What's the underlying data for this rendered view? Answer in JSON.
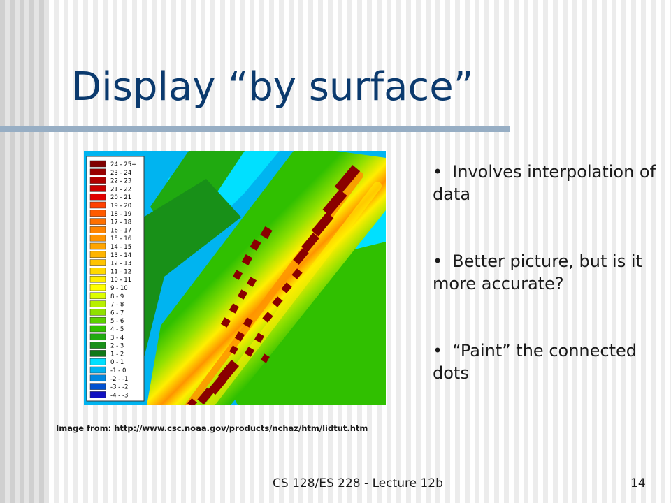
{
  "slide": {
    "title": "Display “by surface”",
    "bullets": [
      {
        "text": "Involves interpolation of data"
      },
      {
        "text": "Better picture, but is it more accurate?"
      },
      {
        "text": "“Paint” the connected dots"
      }
    ],
    "bullet_symbol": "•",
    "caption": "Image from: http://www.csc.noaa.gov/products/nchaz/htm/lidtut.htm",
    "footer": "CS 128/ES 228 - Lecture 12b",
    "page_number": "14"
  },
  "legend": {
    "entries": [
      {
        "label": "24 - 25+",
        "color": "#800000"
      },
      {
        "label": "23 - 24",
        "color": "#990000"
      },
      {
        "label": "22 - 23",
        "color": "#b00000"
      },
      {
        "label": "21 - 22",
        "color": "#cc0000"
      },
      {
        "label": "20 - 21",
        "color": "#e00000"
      },
      {
        "label": "19 - 20",
        "color": "#ff4000"
      },
      {
        "label": "18 - 19",
        "color": "#ff5a00"
      },
      {
        "label": "17 - 18",
        "color": "#ff7000"
      },
      {
        "label": "16 - 17",
        "color": "#ff8400"
      },
      {
        "label": "15 - 16",
        "color": "#ff9400"
      },
      {
        "label": "14 - 15",
        "color": "#ffa400"
      },
      {
        "label": "13 - 14",
        "color": "#ffb400"
      },
      {
        "label": "12 - 13",
        "color": "#ffc400"
      },
      {
        "label": "11 - 12",
        "color": "#ffd800"
      },
      {
        "label": "10 - 11",
        "color": "#ffee00"
      },
      {
        "label": "9 - 10",
        "color": "#ffff00"
      },
      {
        "label": "8 - 9",
        "color": "#ddff00"
      },
      {
        "label": "7 - 8",
        "color": "#b8f000"
      },
      {
        "label": "6 - 7",
        "color": "#90e000"
      },
      {
        "label": "5 - 6",
        "color": "#5cd000"
      },
      {
        "label": "4 - 5",
        "color": "#30c000"
      },
      {
        "label": "3 - 4",
        "color": "#20aa10"
      },
      {
        "label": "2 - 3",
        "color": "#189018"
      },
      {
        "label": "1 - 2",
        "color": "#107818"
      },
      {
        "label": "0 - 1",
        "color": "#00e0ff"
      },
      {
        "label": "-1 - 0",
        "color": "#00b4f0"
      },
      {
        "label": "-2 - -1",
        "color": "#0088e0"
      },
      {
        "label": "-3 - -2",
        "color": "#0050d0"
      },
      {
        "label": "-4 - -3",
        "color": "#1010c0"
      }
    ]
  },
  "colors": {
    "title": "#0b3a6e",
    "rule": "#97aec4",
    "water": "#00b4f0",
    "shallow_water": "#00e0ff",
    "dune_green": "#30c000",
    "crest_yellow": "#ffee00",
    "road_orange": "#ff9400",
    "building": "#8a0000"
  }
}
